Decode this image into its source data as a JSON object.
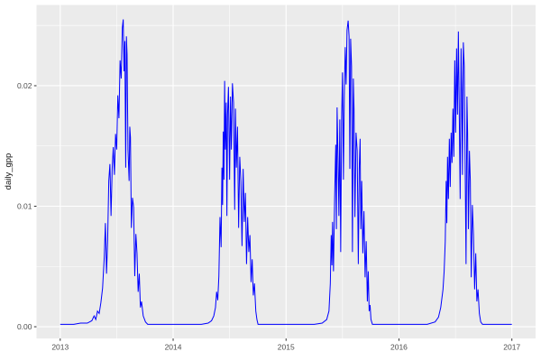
{
  "figure": {
    "background_color": "#FFFFFF"
  },
  "chart_data": {
    "type": "line",
    "title": "",
    "xlabel": "",
    "ylabel": "daily_gpp",
    "legend": "none",
    "grid": "white major and minor gridlines on gray panel",
    "panel_background": "#EBEBEB",
    "grid_color": "#FFFFFF",
    "line_color": "#0000FF",
    "tick_mark_color": "#333333",
    "tick_label_color": "#4D4D4D",
    "axis_title_color": "#111111",
    "xlim": [
      2012.79,
      2017.21
    ],
    "ylim": [
      -0.00097,
      0.0267
    ],
    "x_ticks": {
      "values": [
        2013,
        2014,
        2015,
        2016,
        2017
      ],
      "labels": [
        "2013",
        "2014",
        "2015",
        "2016",
        "2017"
      ]
    },
    "y_ticks": {
      "values": [
        0,
        0.01,
        0.02
      ],
      "labels": [
        "0.00",
        "0.01",
        "0.02"
      ]
    },
    "x_minor_ticks": [
      2013.5,
      2014.5,
      2015.5,
      2016.5
    ],
    "y_minor_ticks": [
      0.005,
      0.015,
      0.025
    ],
    "series": [
      {
        "name": "daily_gpp",
        "color": "#0000FF",
        "points": [
          [
            2013.0,
            0.0002
          ],
          [
            2013.06,
            0.0002
          ],
          [
            2013.12,
            0.0002
          ],
          [
            2013.18,
            0.0003
          ],
          [
            2013.24,
            0.0003
          ],
          [
            2013.28,
            0.0005
          ],
          [
            2013.3,
            0.0009
          ],
          [
            2013.315,
            0.0006
          ],
          [
            2013.33,
            0.0013
          ],
          [
            2013.345,
            0.0011
          ],
          [
            2013.36,
            0.002
          ],
          [
            2013.375,
            0.0032
          ],
          [
            2013.39,
            0.0058
          ],
          [
            2013.4,
            0.0086
          ],
          [
            2013.41,
            0.0044
          ],
          [
            2013.42,
            0.0072
          ],
          [
            2013.43,
            0.0121
          ],
          [
            2013.44,
            0.0135
          ],
          [
            2013.45,
            0.0092
          ],
          [
            2013.46,
            0.0131
          ],
          [
            2013.47,
            0.0149
          ],
          [
            2013.48,
            0.0126
          ],
          [
            2013.49,
            0.016
          ],
          [
            2013.5,
            0.0147
          ],
          [
            2013.51,
            0.0192
          ],
          [
            2013.52,
            0.0173
          ],
          [
            2013.53,
            0.0221
          ],
          [
            2013.54,
            0.0206
          ],
          [
            2013.55,
            0.0248
          ],
          [
            2013.558,
            0.0255
          ],
          [
            2013.565,
            0.0212
          ],
          [
            2013.572,
            0.0237
          ],
          [
            2013.58,
            0.0132
          ],
          [
            2013.586,
            0.0241
          ],
          [
            2013.592,
            0.0226
          ],
          [
            2013.6,
            0.0147
          ],
          [
            2013.61,
            0.0121
          ],
          [
            2013.616,
            0.0166
          ],
          [
            2013.622,
            0.0157
          ],
          [
            2013.63,
            0.0082
          ],
          [
            2013.64,
            0.0107
          ],
          [
            2013.65,
            0.0099
          ],
          [
            2013.66,
            0.0042
          ],
          [
            2013.67,
            0.0077
          ],
          [
            2013.68,
            0.0061
          ],
          [
            2013.69,
            0.0029
          ],
          [
            2013.7,
            0.0044
          ],
          [
            2013.71,
            0.0016
          ],
          [
            2013.72,
            0.0021
          ],
          [
            2013.735,
            0.0009
          ],
          [
            2013.755,
            0.0004
          ],
          [
            2013.775,
            0.0002
          ],
          [
            2013.85,
            0.0002
          ],
          [
            2013.95,
            0.0002
          ],
          [
            2014.05,
            0.0002
          ],
          [
            2014.15,
            0.0002
          ],
          [
            2014.25,
            0.0002
          ],
          [
            2014.31,
            0.0003
          ],
          [
            2014.34,
            0.0005
          ],
          [
            2014.36,
            0.0009
          ],
          [
            2014.375,
            0.0016
          ],
          [
            2014.385,
            0.0029
          ],
          [
            2014.395,
            0.0022
          ],
          [
            2014.405,
            0.0042
          ],
          [
            2014.415,
            0.0091
          ],
          [
            2014.425,
            0.0066
          ],
          [
            2014.432,
            0.0132
          ],
          [
            2014.438,
            0.0101
          ],
          [
            2014.444,
            0.0162
          ],
          [
            2014.45,
            0.0122
          ],
          [
            2014.456,
            0.0204
          ],
          [
            2014.462,
            0.0147
          ],
          [
            2014.47,
            0.0186
          ],
          [
            2014.476,
            0.0092
          ],
          [
            2014.482,
            0.0176
          ],
          [
            2014.49,
            0.0199
          ],
          [
            2014.5,
            0.0122
          ],
          [
            2014.508,
            0.0191
          ],
          [
            2014.516,
            0.0147
          ],
          [
            2014.525,
            0.0202
          ],
          [
            2014.535,
            0.0186
          ],
          [
            2014.545,
            0.0097
          ],
          [
            2014.552,
            0.0181
          ],
          [
            2014.56,
            0.0132
          ],
          [
            2014.57,
            0.0166
          ],
          [
            2014.58,
            0.0082
          ],
          [
            2014.59,
            0.0141
          ],
          [
            2014.6,
            0.0121
          ],
          [
            2014.61,
            0.0067
          ],
          [
            2014.62,
            0.0131
          ],
          [
            2014.63,
            0.0087
          ],
          [
            2014.64,
            0.0111
          ],
          [
            2014.65,
            0.0052
          ],
          [
            2014.66,
            0.0091
          ],
          [
            2014.67,
            0.0062
          ],
          [
            2014.68,
            0.0076
          ],
          [
            2014.69,
            0.0037
          ],
          [
            2014.7,
            0.0056
          ],
          [
            2014.71,
            0.0026
          ],
          [
            2014.72,
            0.0036
          ],
          [
            2014.732,
            0.0013
          ],
          [
            2014.742,
            0.0006
          ],
          [
            2014.752,
            0.0002
          ],
          [
            2014.85,
            0.0002
          ],
          [
            2014.95,
            0.0002
          ],
          [
            2015.05,
            0.0002
          ],
          [
            2015.15,
            0.0002
          ],
          [
            2015.25,
            0.0002
          ],
          [
            2015.32,
            0.0003
          ],
          [
            2015.36,
            0.0006
          ],
          [
            2015.38,
            0.0013
          ],
          [
            2015.392,
            0.0036
          ],
          [
            2015.4,
            0.0076
          ],
          [
            2015.406,
            0.0051
          ],
          [
            2015.412,
            0.0087
          ],
          [
            2015.42,
            0.0046
          ],
          [
            2015.43,
            0.0106
          ],
          [
            2015.44,
            0.0151
          ],
          [
            2015.446,
            0.0081
          ],
          [
            2015.452,
            0.0182
          ],
          [
            2015.46,
            0.0141
          ],
          [
            2015.468,
            0.0092
          ],
          [
            2015.476,
            0.0172
          ],
          [
            2015.484,
            0.0062
          ],
          [
            2015.492,
            0.0171
          ],
          [
            2015.5,
            0.0211
          ],
          [
            2015.508,
            0.0122
          ],
          [
            2015.516,
            0.0192
          ],
          [
            2015.524,
            0.0232
          ],
          [
            2015.532,
            0.0201
          ],
          [
            2015.54,
            0.0246
          ],
          [
            2015.55,
            0.0254
          ],
          [
            2015.558,
            0.0241
          ],
          [
            2015.565,
            0.0131
          ],
          [
            2015.572,
            0.0239
          ],
          [
            2015.58,
            0.0216
          ],
          [
            2015.588,
            0.0062
          ],
          [
            2015.596,
            0.0206
          ],
          [
            2015.602,
            0.0181
          ],
          [
            2015.61,
            0.0091
          ],
          [
            2015.62,
            0.0161
          ],
          [
            2015.63,
            0.0146
          ],
          [
            2015.64,
            0.0052
          ],
          [
            2015.648,
            0.0131
          ],
          [
            2015.656,
            0.0156
          ],
          [
            2015.662,
            0.0081
          ],
          [
            2015.67,
            0.0121
          ],
          [
            2015.68,
            0.0061
          ],
          [
            2015.69,
            0.0096
          ],
          [
            2015.7,
            0.0041
          ],
          [
            2015.71,
            0.0071
          ],
          [
            2015.72,
            0.0021
          ],
          [
            2015.728,
            0.0046
          ],
          [
            2015.736,
            0.0013
          ],
          [
            2015.744,
            0.0018
          ],
          [
            2015.752,
            0.0006
          ],
          [
            2015.765,
            0.0002
          ],
          [
            2015.85,
            0.0002
          ],
          [
            2015.95,
            0.0002
          ],
          [
            2016.05,
            0.0002
          ],
          [
            2016.15,
            0.0002
          ],
          [
            2016.25,
            0.0002
          ],
          [
            2016.32,
            0.0004
          ],
          [
            2016.35,
            0.0008
          ],
          [
            2016.37,
            0.0016
          ],
          [
            2016.39,
            0.0031
          ],
          [
            2016.4,
            0.0046
          ],
          [
            2016.41,
            0.0071
          ],
          [
            2016.418,
            0.0121
          ],
          [
            2016.424,
            0.0086
          ],
          [
            2016.43,
            0.0141
          ],
          [
            2016.438,
            0.0106
          ],
          [
            2016.446,
            0.0156
          ],
          [
            2016.454,
            0.0116
          ],
          [
            2016.462,
            0.0161
          ],
          [
            2016.47,
            0.0136
          ],
          [
            2016.478,
            0.0181
          ],
          [
            2016.486,
            0.0141
          ],
          [
            2016.494,
            0.0221
          ],
          [
            2016.502,
            0.0161
          ],
          [
            2016.51,
            0.0231
          ],
          [
            2016.518,
            0.0176
          ],
          [
            2016.526,
            0.0245
          ],
          [
            2016.534,
            0.0177
          ],
          [
            2016.542,
            0.0106
          ],
          [
            2016.55,
            0.0231
          ],
          [
            2016.556,
            0.0196
          ],
          [
            2016.562,
            0.0126
          ],
          [
            2016.57,
            0.0236
          ],
          [
            2016.578,
            0.0216
          ],
          [
            2016.586,
            0.0136
          ],
          [
            2016.594,
            0.0052
          ],
          [
            2016.602,
            0.0191
          ],
          [
            2016.608,
            0.0161
          ],
          [
            2016.615,
            0.0081
          ],
          [
            2016.624,
            0.0146
          ],
          [
            2016.632,
            0.0121
          ],
          [
            2016.64,
            0.0041
          ],
          [
            2016.65,
            0.0101
          ],
          [
            2016.66,
            0.0076
          ],
          [
            2016.67,
            0.0031
          ],
          [
            2016.68,
            0.0061
          ],
          [
            2016.69,
            0.0021
          ],
          [
            2016.7,
            0.0031
          ],
          [
            2016.712,
            0.0011
          ],
          [
            2016.724,
            0.0004
          ],
          [
            2016.74,
            0.0002
          ],
          [
            2016.82,
            0.0002
          ],
          [
            2016.9,
            0.0002
          ],
          [
            2016.96,
            0.0002
          ],
          [
            2017.0,
            0.0002
          ]
        ]
      }
    ]
  }
}
